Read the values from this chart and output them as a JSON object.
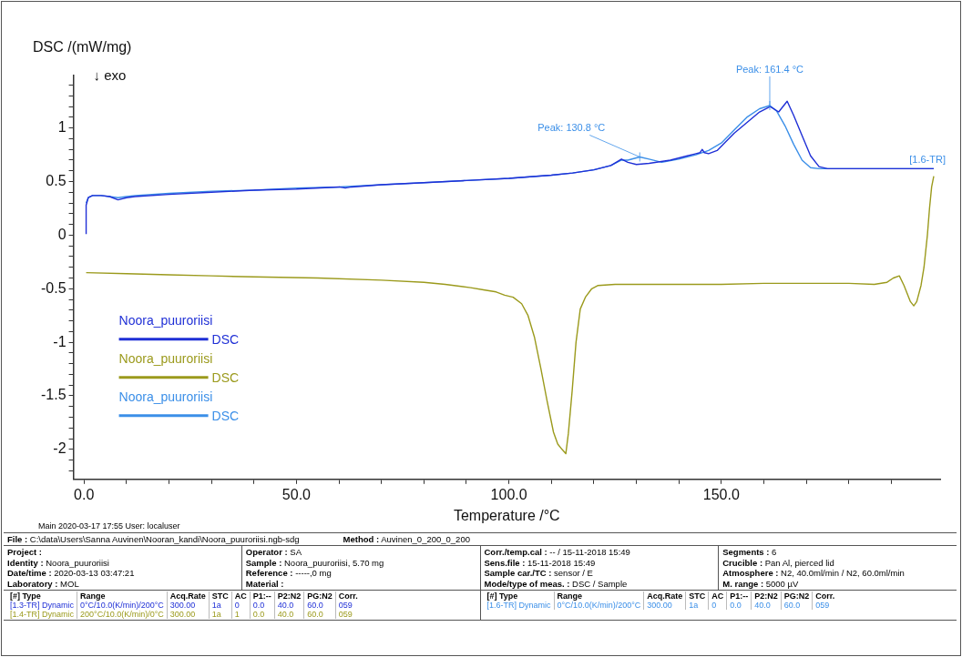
{
  "chart_data": {
    "type": "line",
    "xlabel": "Temperature /°C",
    "ylabel": "DSC /(mW/mg)",
    "xlim": [
      -2.5,
      201.5
    ],
    "ylim": [
      -2.28,
      1.49
    ],
    "xticks": [
      {
        "value": 0,
        "label": "0.0"
      },
      {
        "value": 10,
        "label": null
      },
      {
        "value": 20,
        "label": null
      },
      {
        "value": 30,
        "label": null
      },
      {
        "value": 40,
        "label": null
      },
      {
        "value": 50,
        "label": "50.0"
      },
      {
        "value": 60,
        "label": null
      },
      {
        "value": 70,
        "label": null
      },
      {
        "value": 80,
        "label": null
      },
      {
        "value": 90,
        "label": null
      },
      {
        "value": 100,
        "label": "100.0"
      },
      {
        "value": 110,
        "label": null
      },
      {
        "value": 120,
        "label": null
      },
      {
        "value": 130,
        "label": null
      },
      {
        "value": 140,
        "label": null
      },
      {
        "value": 150,
        "label": "150.0"
      },
      {
        "value": 160,
        "label": null
      },
      {
        "value": 170,
        "label": null
      },
      {
        "value": 180,
        "label": null
      },
      {
        "value": 190,
        "label": null
      }
    ],
    "yticks": [
      -2,
      -1.5,
      -1,
      -0.5,
      0,
      0.5,
      1,
      {
        "value": -2.2,
        "label": null
      },
      {
        "value": -2.1,
        "label": null
      },
      {
        "value": -1.9,
        "label": null
      },
      {
        "value": -1.8,
        "label": null
      },
      {
        "value": -1.7,
        "label": null
      },
      {
        "value": -1.6,
        "label": null
      },
      {
        "value": -1.4,
        "label": null
      },
      {
        "value": -1.3,
        "label": null
      },
      {
        "value": -1.2,
        "label": null
      },
      {
        "value": -1.1,
        "label": null
      },
      {
        "value": -0.9,
        "label": null
      },
      {
        "value": -0.8,
        "label": null
      },
      {
        "value": -0.7,
        "label": null
      },
      {
        "value": -0.6,
        "label": null
      },
      {
        "value": -0.4,
        "label": null
      },
      {
        "value": -0.3,
        "label": null
      },
      {
        "value": -0.2,
        "label": null
      },
      {
        "value": -0.1,
        "label": null
      },
      {
        "value": 0.1,
        "label": null
      },
      {
        "value": 0.2,
        "label": null
      },
      {
        "value": 0.3,
        "label": null
      },
      {
        "value": 0.4,
        "label": null
      },
      {
        "value": 0.6,
        "label": null
      },
      {
        "value": 0.7,
        "label": null
      },
      {
        "value": 0.8,
        "label": null
      },
      {
        "value": 0.9,
        "label": null
      },
      {
        "value": 1.1,
        "label": null
      },
      {
        "value": 1.2,
        "label": null
      },
      {
        "value": 1.3,
        "label": null
      },
      {
        "value": 1.4,
        "label": null
      }
    ],
    "grid": false,
    "legend": "bottom left",
    "marker": "none",
    "line_style": "solid",
    "series": [
      {
        "name": "Noora_puuroriisi DSC",
        "color": "#1f2fd6",
        "x": [
          0.5,
          0.5,
          1,
          2,
          4,
          6,
          8,
          10,
          12,
          20,
          30,
          40,
          50,
          60,
          61.5,
          63,
          70,
          80,
          90,
          100,
          110,
          115,
          120,
          124,
          126.5,
          128,
          130,
          133,
          138,
          142,
          145,
          145.5,
          146,
          147,
          149,
          151,
          153,
          156,
          159,
          161.5,
          163.5,
          165.5,
          167,
          169,
          171,
          173,
          175,
          180,
          190,
          200
        ],
        "values": [
          0.01,
          0.28,
          0.35,
          0.37,
          0.37,
          0.36,
          0.33,
          0.35,
          0.36,
          0.38,
          0.4,
          0.42,
          0.43,
          0.45,
          0.44,
          0.45,
          0.47,
          0.49,
          0.51,
          0.53,
          0.56,
          0.58,
          0.61,
          0.65,
          0.71,
          0.68,
          0.66,
          0.67,
          0.7,
          0.74,
          0.77,
          0.8,
          0.77,
          0.76,
          0.79,
          0.87,
          0.95,
          1.05,
          1.15,
          1.2,
          1.15,
          1.25,
          1.12,
          0.93,
          0.74,
          0.64,
          0.62,
          0.62,
          0.62,
          0.62
        ]
      },
      {
        "name": "Noora_puuroriisi DSC",
        "color": "#9b9a1c",
        "x": [
          200,
          199.5,
          199,
          198.5,
          197.7,
          197,
          196,
          195.3,
          194.5,
          193,
          191.9,
          190.5,
          189,
          186,
          180,
          170,
          160,
          150,
          140,
          130,
          125,
          121,
          119.5,
          118,
          116.8,
          115.8,
          114.9,
          114,
          113.4,
          112.5,
          111.5,
          110.5,
          109,
          107.5,
          106,
          104.5,
          103,
          101,
          99,
          97,
          94,
          91,
          85,
          80,
          70,
          55,
          40,
          30,
          20,
          10,
          0.5
        ],
        "values": [
          0.55,
          0.45,
          0.25,
          0.0,
          -0.3,
          -0.47,
          -0.62,
          -0.66,
          -0.62,
          -0.47,
          -0.38,
          -0.4,
          -0.44,
          -0.46,
          -0.45,
          -0.45,
          -0.45,
          -0.46,
          -0.46,
          -0.46,
          -0.46,
          -0.47,
          -0.5,
          -0.58,
          -0.69,
          -1.0,
          -1.45,
          -1.85,
          -2.04,
          -2.0,
          -1.95,
          -1.84,
          -1.55,
          -1.24,
          -0.95,
          -0.75,
          -0.64,
          -0.58,
          -0.56,
          -0.53,
          -0.51,
          -0.49,
          -0.46,
          -0.44,
          -0.42,
          -0.4,
          -0.39,
          -0.38,
          -0.37,
          -0.36,
          -0.35
        ]
      },
      {
        "name": "Noora_puuroriisi DSC",
        "color": "#3b8fe8",
        "x": [
          0.5,
          1,
          2,
          4,
          6,
          8,
          10,
          12,
          20,
          30,
          40,
          50,
          60,
          70,
          80,
          90,
          100,
          110,
          115,
          120,
          124,
          126.5,
          128,
          130.8,
          133,
          136,
          140,
          144,
          147,
          150,
          153,
          156,
          159,
          161.4,
          163,
          165,
          167,
          169,
          171,
          173,
          175,
          180,
          190,
          200
        ],
        "values": [
          0.3,
          0.35,
          0.37,
          0.37,
          0.36,
          0.35,
          0.36,
          0.37,
          0.39,
          0.41,
          0.42,
          0.44,
          0.45,
          0.47,
          0.49,
          0.51,
          0.53,
          0.56,
          0.58,
          0.61,
          0.65,
          0.7,
          0.7,
          0.73,
          0.71,
          0.68,
          0.71,
          0.75,
          0.79,
          0.86,
          0.98,
          1.1,
          1.18,
          1.21,
          1.16,
          1.02,
          0.85,
          0.7,
          0.63,
          0.62,
          0.62,
          0.62,
          0.62,
          0.62
        ]
      }
    ],
    "annotations": [
      "↓ exo",
      {
        "text": "Peak: 130.8 °C",
        "x": 130.8,
        "y": 0.73
      },
      {
        "text": "Peak: 161.4 °C",
        "x": 161.4,
        "y": 1.21
      },
      {
        "text": "[1.6-TR]",
        "x": 200,
        "y": 0.62
      },
      "Main   2020-03-17 17:55   User: localuser",
      "File : C:\\data\\Users\\Sanna Auvinen\\Nooran_kandi\\Noora_puuroriisi.ngb-sdg",
      "Method : Auvinen_0_200_0_200",
      "Project :",
      "Identity : Noora_puuroriisi",
      "Date/time : 2020-03-13 03:47:21",
      "Laboratory : MOL",
      "Operator : SA",
      "Sample : Noora_puuroriisi, 5.70 mg",
      "Reference : -----,0 mg",
      "Material :",
      "Corr./temp.cal : -- / 15-11-2018 15:49",
      "Sens.file : 15-11-2018 15:49",
      "Sample car./TC : sensor / E",
      "Mode/type of meas. : DSC / Sample",
      "Segments : 6",
      "Crucible : Pan Al, pierced lid",
      "Atmosphere : N2, 40.0ml/min / N2, 60.0ml/min",
      "M. range : 5000 µV",
      "[#] Type\tRange\tAcq.Rate\tSTC\tAC\tP1:--\tP2:N2\tPG:N2\tCorr.",
      "[1.3-TR] Dynamic\t0°C/10.0(K/min)/200°C\t300.00\t1a\t0\t0.0\t40.0\t60.0\t059",
      "[1.4-TR] Dynamic\t200°C/10.0(K/min)/0°C\t300.00\t1a\t1\t0.0\t40.0\t60.0\t059",
      "[#] Type\tRange\tAcq.Rate\tSTC\tAC\tP1:--\tP2:N2\tPG:N2\tCorr.",
      "[1.6-TR] Dynamic\t0°C/10.0(K/min)/200°C\t300.00\t1a\t0\t0.0\t40.0\t60.0\t059"
    ]
  }
}
